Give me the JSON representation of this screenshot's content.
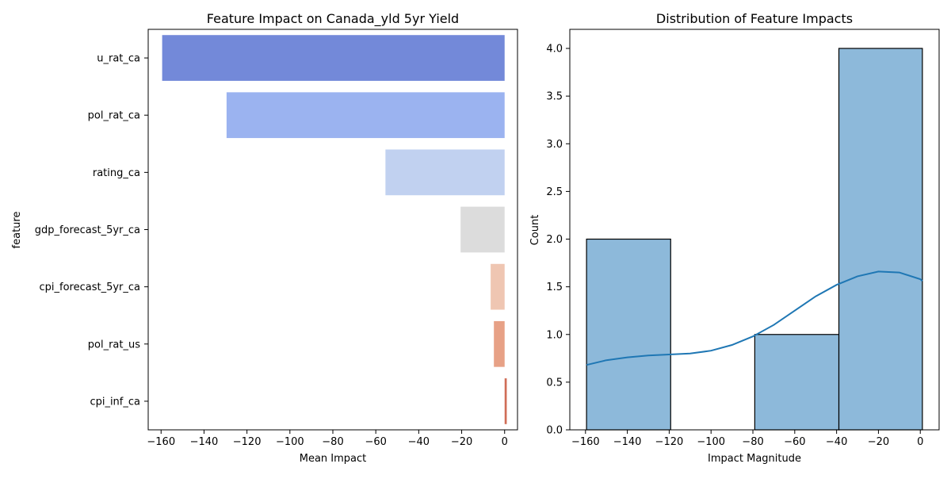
{
  "chart_data": [
    {
      "type": "bar",
      "orientation": "horizontal",
      "title": "Feature Impact on Canada_yld 5yr Yield",
      "xlabel": "Mean Impact",
      "ylabel": "feature",
      "categories": [
        "u_rat_ca",
        "pol_rat_ca",
        "rating_ca",
        "gdp_forecast_5yr_ca",
        "cpi_forecast_5yr_ca",
        "pol_rat_us",
        "cpi_inf_ca"
      ],
      "values": [
        -159.5,
        -129.5,
        -55.5,
        -20.5,
        -6.5,
        -5.0,
        1.0
      ],
      "colors": [
        "#7389d9",
        "#9bb3f0",
        "#c1d1f0",
        "#dcdcdc",
        "#efc6b2",
        "#e7a186",
        "#d06d57"
      ],
      "xlim": [
        -166,
        6
      ],
      "xticks": [
        -160,
        -140,
        -120,
        -100,
        -80,
        -60,
        -40,
        -20,
        0
      ],
      "grid": false
    },
    {
      "type": "histogram",
      "title": "Distribution of Feature Impacts",
      "xlabel": "Impact Magnitude",
      "ylabel": "Count",
      "bins": [
        {
          "x0": -159.5,
          "x1": -119.3,
          "count": 2
        },
        {
          "x0": -119.3,
          "x1": -79.1,
          "count": 0
        },
        {
          "x0": -79.1,
          "x1": -38.9,
          "count": 1
        },
        {
          "x0": -38.9,
          "x1": 1.0,
          "count": 4
        }
      ],
      "kde": {
        "x": [
          -159.5,
          -150,
          -140,
          -130,
          -120,
          -110,
          -100,
          -90,
          -80,
          -70,
          -60,
          -50,
          -40,
          -30,
          -20,
          -10,
          0,
          1
        ],
        "y": [
          0.68,
          0.73,
          0.76,
          0.78,
          0.79,
          0.8,
          0.83,
          0.89,
          0.98,
          1.1,
          1.25,
          1.4,
          1.52,
          1.61,
          1.66,
          1.65,
          1.58,
          1.56
        ]
      },
      "bar_color": "#8db9da",
      "line_color": "#1f77b4",
      "xlim": [
        -167.5,
        9
      ],
      "ylim": [
        0,
        4.2
      ],
      "xticks": [
        -160,
        -140,
        -120,
        -100,
        -80,
        -60,
        -40,
        -20,
        0
      ],
      "yticks": [
        "0.0",
        "0.5",
        "1.0",
        "1.5",
        "2.0",
        "2.5",
        "3.0",
        "3.5",
        "4.0"
      ],
      "grid": false
    }
  ]
}
